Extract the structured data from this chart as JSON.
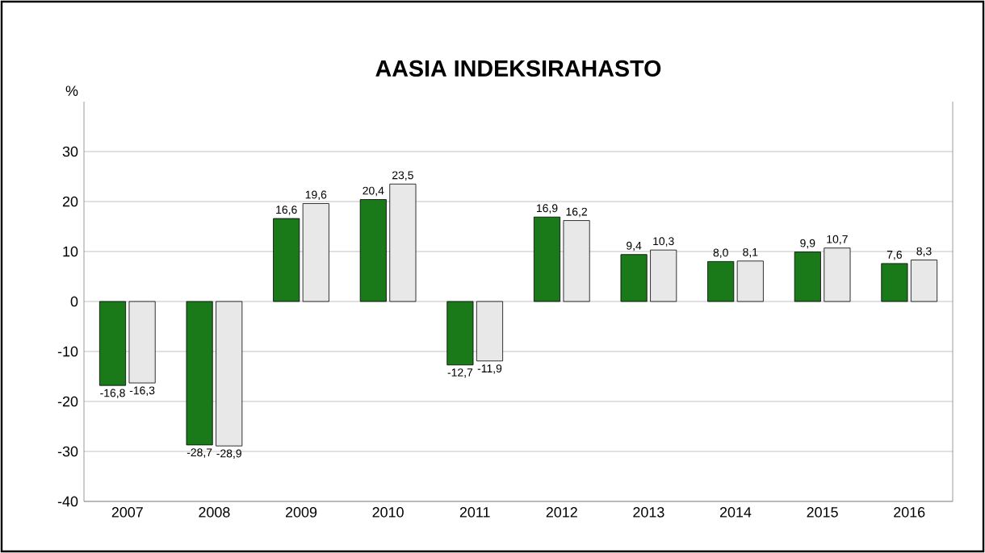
{
  "chart_data": {
    "type": "bar",
    "title": "AASIA INDEKSIRAHASTO",
    "ylabel": "%",
    "categories": [
      "2007",
      "2008",
      "2009",
      "2010",
      "2011",
      "2012",
      "2013",
      "2014",
      "2015",
      "2016"
    ],
    "series": [
      {
        "color": "#1a7a1a",
        "values": [
          -16.8,
          -28.7,
          16.6,
          20.4,
          -12.7,
          16.9,
          9.4,
          8.0,
          9.9,
          7.6
        ],
        "value_labels": [
          "-16,8",
          "-28,7",
          "16,6",
          "20,4",
          "-12,7",
          "16,9",
          "9,4",
          "8,0",
          "9,9",
          "7,6"
        ]
      },
      {
        "color": "#e8e8e8",
        "values": [
          -16.3,
          -28.9,
          19.6,
          23.5,
          -11.9,
          16.2,
          10.3,
          8.1,
          10.7,
          8.3
        ],
        "value_labels": [
          "-16,3",
          "-28,9",
          "19,6",
          "23,5",
          "-11,9",
          "16,2",
          "10,3",
          "8,1",
          "10,7",
          "8,3"
        ]
      }
    ],
    "ylim": [
      -40,
      40
    ],
    "yticks": [
      -40,
      -30,
      -20,
      -10,
      0,
      10,
      20,
      30
    ],
    "grid": "y"
  }
}
